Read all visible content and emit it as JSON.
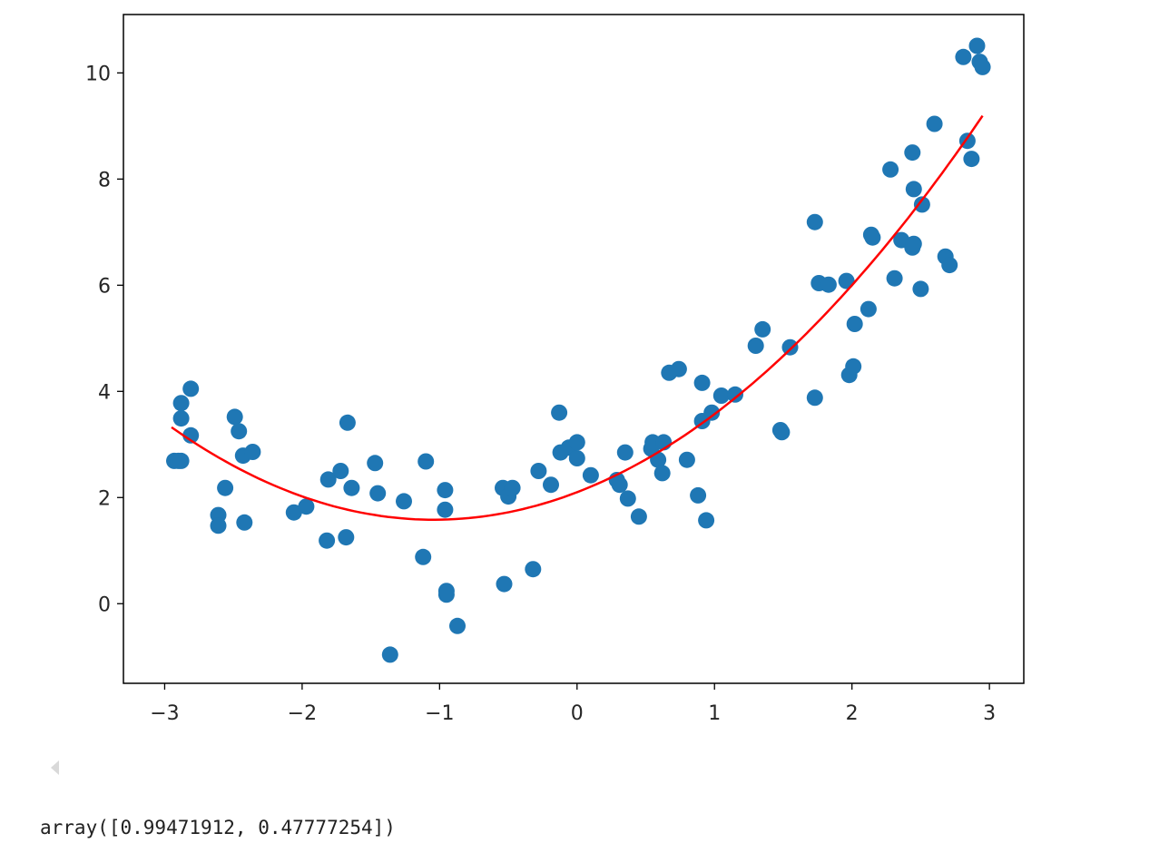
{
  "chart_data": {
    "type": "scatter",
    "title": "",
    "xlabel": "",
    "ylabel": "",
    "xlim": [
      -3.3,
      3.25
    ],
    "ylim": [
      -1.5,
      11.1
    ],
    "xticks": [
      -3,
      -2,
      -1,
      0,
      1,
      2,
      3
    ],
    "yticks": [
      0,
      2,
      4,
      6,
      8,
      10
    ],
    "grid": false,
    "legend": "none",
    "colors": {
      "points": "#1f77b4",
      "fit": "#ff0000",
      "axes": "#000000"
    },
    "series": [
      {
        "kind": "scatter",
        "points": [
          [
            -2.93,
            2.69
          ],
          [
            -2.9,
            2.69
          ],
          [
            -2.88,
            2.69
          ],
          [
            -2.88,
            3.78
          ],
          [
            -2.88,
            3.49
          ],
          [
            -2.81,
            4.05
          ],
          [
            -2.81,
            3.17
          ],
          [
            -2.61,
            1.67
          ],
          [
            -2.61,
            1.47
          ],
          [
            -2.56,
            2.18
          ],
          [
            -2.49,
            3.52
          ],
          [
            -2.46,
            3.25
          ],
          [
            -2.43,
            2.79
          ],
          [
            -2.42,
            1.53
          ],
          [
            -2.36,
            2.86
          ],
          [
            -2.06,
            1.72
          ],
          [
            -1.97,
            1.83
          ],
          [
            -1.82,
            1.19
          ],
          [
            -1.81,
            2.34
          ],
          [
            -1.72,
            2.5
          ],
          [
            -1.68,
            1.25
          ],
          [
            -1.67,
            3.41
          ],
          [
            -1.64,
            2.18
          ],
          [
            -1.47,
            2.65
          ],
          [
            -1.45,
            2.08
          ],
          [
            -1.36,
            -0.96
          ],
          [
            -1.26,
            1.93
          ],
          [
            -1.12,
            0.88
          ],
          [
            -1.1,
            2.68
          ],
          [
            -0.96,
            2.14
          ],
          [
            -0.96,
            1.77
          ],
          [
            -0.95,
            0.24
          ],
          [
            -0.95,
            0.17
          ],
          [
            -0.87,
            -0.42
          ],
          [
            -0.54,
            2.18
          ],
          [
            -0.53,
            0.37
          ],
          [
            -0.5,
            2.02
          ],
          [
            -0.47,
            2.18
          ],
          [
            -0.32,
            0.65
          ],
          [
            -0.28,
            2.5
          ],
          [
            -0.19,
            2.24
          ],
          [
            -0.13,
            3.6
          ],
          [
            -0.12,
            2.85
          ],
          [
            -0.06,
            2.94
          ],
          [
            0.0,
            3.04
          ],
          [
            0.0,
            2.74
          ],
          [
            0.1,
            2.42
          ],
          [
            0.29,
            2.33
          ],
          [
            0.31,
            2.24
          ],
          [
            0.35,
            2.85
          ],
          [
            0.37,
            1.98
          ],
          [
            0.45,
            1.64
          ],
          [
            0.54,
            2.92
          ],
          [
            0.55,
            3.04
          ],
          [
            0.59,
            2.71
          ],
          [
            0.62,
            2.46
          ],
          [
            0.63,
            3.04
          ],
          [
            0.67,
            4.35
          ],
          [
            0.74,
            4.42
          ],
          [
            0.8,
            2.71
          ],
          [
            0.88,
            2.04
          ],
          [
            0.91,
            4.16
          ],
          [
            0.91,
            3.44
          ],
          [
            0.94,
            1.57
          ],
          [
            0.98,
            3.6
          ],
          [
            1.05,
            3.92
          ],
          [
            1.15,
            3.94
          ],
          [
            1.3,
            4.86
          ],
          [
            1.35,
            5.17
          ],
          [
            1.48,
            3.27
          ],
          [
            1.49,
            3.23
          ],
          [
            1.55,
            4.83
          ],
          [
            1.73,
            3.88
          ],
          [
            1.73,
            7.19
          ],
          [
            1.76,
            6.04
          ],
          [
            1.83,
            6.01
          ],
          [
            1.96,
            6.08
          ],
          [
            1.98,
            4.31
          ],
          [
            2.01,
            4.47
          ],
          [
            2.02,
            5.27
          ],
          [
            2.12,
            5.55
          ],
          [
            2.14,
            6.95
          ],
          [
            2.15,
            6.9
          ],
          [
            2.28,
            8.18
          ],
          [
            2.31,
            6.13
          ],
          [
            2.36,
            6.85
          ],
          [
            2.44,
            6.71
          ],
          [
            2.44,
            8.5
          ],
          [
            2.45,
            6.78
          ],
          [
            2.45,
            7.81
          ],
          [
            2.5,
            5.93
          ],
          [
            2.51,
            7.52
          ],
          [
            2.6,
            9.04
          ],
          [
            2.68,
            6.54
          ],
          [
            2.71,
            6.38
          ],
          [
            2.81,
            10.3
          ],
          [
            2.84,
            8.72
          ],
          [
            2.87,
            8.38
          ],
          [
            2.91,
            10.51
          ],
          [
            2.93,
            10.21
          ],
          [
            2.95,
            10.11
          ]
        ]
      },
      {
        "kind": "line",
        "x_range": [
          -2.95,
          2.95
        ],
        "a": 0.47777254,
        "b": 0.99471912,
        "c": 2.1
      }
    ]
  },
  "output": {
    "text": "array([0.99471912, 0.47777254])"
  }
}
